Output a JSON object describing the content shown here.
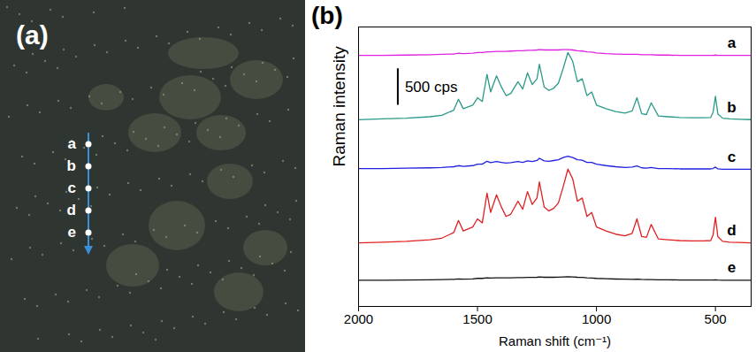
{
  "image": {
    "label": "(a)",
    "points": [
      "a",
      "b",
      "c",
      "d",
      "e"
    ]
  },
  "chart_data": {
    "type": "line",
    "panel_label": "(b)",
    "xlabel": "Raman shift (cm⁻¹)",
    "ylabel": "Raman intensity",
    "scale_bar": {
      "length": 500,
      "label": "500 cps"
    },
    "xlim": [
      2000,
      350
    ],
    "xticks": [
      2000,
      1500,
      1000,
      500
    ],
    "ylim": [
      0,
      3830
    ],
    "yticks": [],
    "tick_labels": "x",
    "x": [
      2000,
      1900,
      1800,
      1700,
      1650,
      1600,
      1580,
      1560,
      1520,
      1500,
      1480,
      1460,
      1445,
      1420,
      1400,
      1380,
      1360,
      1330,
      1310,
      1290,
      1270,
      1250,
      1240,
      1220,
      1200,
      1180,
      1160,
      1140,
      1120,
      1100,
      1080,
      1060,
      1040,
      1020,
      1000,
      960,
      920,
      880,
      850,
      830,
      810,
      790,
      770,
      740,
      700,
      650,
      600,
      550,
      520,
      510,
      500,
      490,
      470,
      440,
      400,
      350
    ],
    "series": [
      {
        "name": "a",
        "color": "#e020e0",
        "values": [
          3440,
          3440,
          3445,
          3450,
          3455,
          3460,
          3470,
          3465,
          3470,
          3480,
          3480,
          3490,
          3490,
          3495,
          3495,
          3495,
          3500,
          3505,
          3505,
          3510,
          3510,
          3515,
          3520,
          3515,
          3515,
          3515,
          3515,
          3520,
          3520,
          3515,
          3505,
          3500,
          3490,
          3485,
          3475,
          3465,
          3460,
          3455,
          3455,
          3455,
          3450,
          3450,
          3450,
          3445,
          3445,
          3440,
          3440,
          3440,
          3440,
          3440,
          3445,
          3440,
          3440,
          3440,
          3440,
          3440
        ]
      },
      {
        "name": "b",
        "color": "#2a9a8a",
        "values": [
          2560,
          2570,
          2580,
          2600,
          2620,
          2690,
          2840,
          2710,
          2760,
          2860,
          2810,
          3180,
          2940,
          3160,
          3010,
          2890,
          2920,
          3080,
          2980,
          3200,
          3040,
          3120,
          3320,
          3010,
          2960,
          2990,
          3060,
          3260,
          3480,
          3360,
          3080,
          3120,
          2890,
          2940,
          2760,
          2710,
          2670,
          2650,
          2680,
          2860,
          2640,
          2630,
          2790,
          2610,
          2600,
          2590,
          2585,
          2585,
          2590,
          2660,
          2880,
          2640,
          2580,
          2570,
          2565,
          2560
        ]
      },
      {
        "name": "c",
        "color": "#2020e0",
        "values": [
          1890,
          1890,
          1895,
          1900,
          1905,
          1915,
          1930,
          1920,
          1930,
          1950,
          1950,
          1990,
          1970,
          1985,
          1975,
          1965,
          1970,
          1985,
          1975,
          1995,
          1985,
          2000,
          2030,
          1995,
          1990,
          2000,
          2010,
          2040,
          2060,
          2040,
          2010,
          2005,
          1975,
          1975,
          1950,
          1930,
          1915,
          1905,
          1910,
          1925,
          1900,
          1895,
          1905,
          1890,
          1890,
          1885,
          1885,
          1885,
          1885,
          1890,
          1910,
          1885,
          1880,
          1880,
          1880,
          1880
        ]
      },
      {
        "name": "d",
        "color": "#e02020",
        "values": [
          870,
          881,
          892,
          914,
          936,
          1013,
          1178,
          1035,
          1090,
          1200,
          1145,
          1552,
          1288,
          1530,
          1365,
          1233,
          1266,
          1442,
          1332,
          1574,
          1398,
          1486,
          1706,
          1365,
          1310,
          1343,
          1420,
          1640,
          1882,
          1750,
          1442,
          1486,
          1233,
          1288,
          1090,
          1035,
          991,
          969,
          1002,
          1200,
          958,
          947,
          1123,
          925,
          914,
          903,
          898,
          898,
          903,
          980,
          1222,
          958,
          892,
          881,
          876,
          870
        ]
      },
      {
        "name": "e",
        "color": "#111111",
        "values": [
          360,
          360,
          362,
          365,
          368,
          372,
          378,
          375,
          378,
          385,
          385,
          392,
          390,
          393,
          392,
          392,
          393,
          396,
          395,
          398,
          398,
          400,
          405,
          400,
          400,
          400,
          402,
          405,
          408,
          405,
          400,
          398,
          392,
          390,
          385,
          380,
          376,
          373,
          372,
          374,
          370,
          368,
          368,
          366,
          365,
          363,
          362,
          362,
          362,
          362,
          365,
          362,
          360,
          360,
          360,
          360
        ]
      }
    ]
  }
}
